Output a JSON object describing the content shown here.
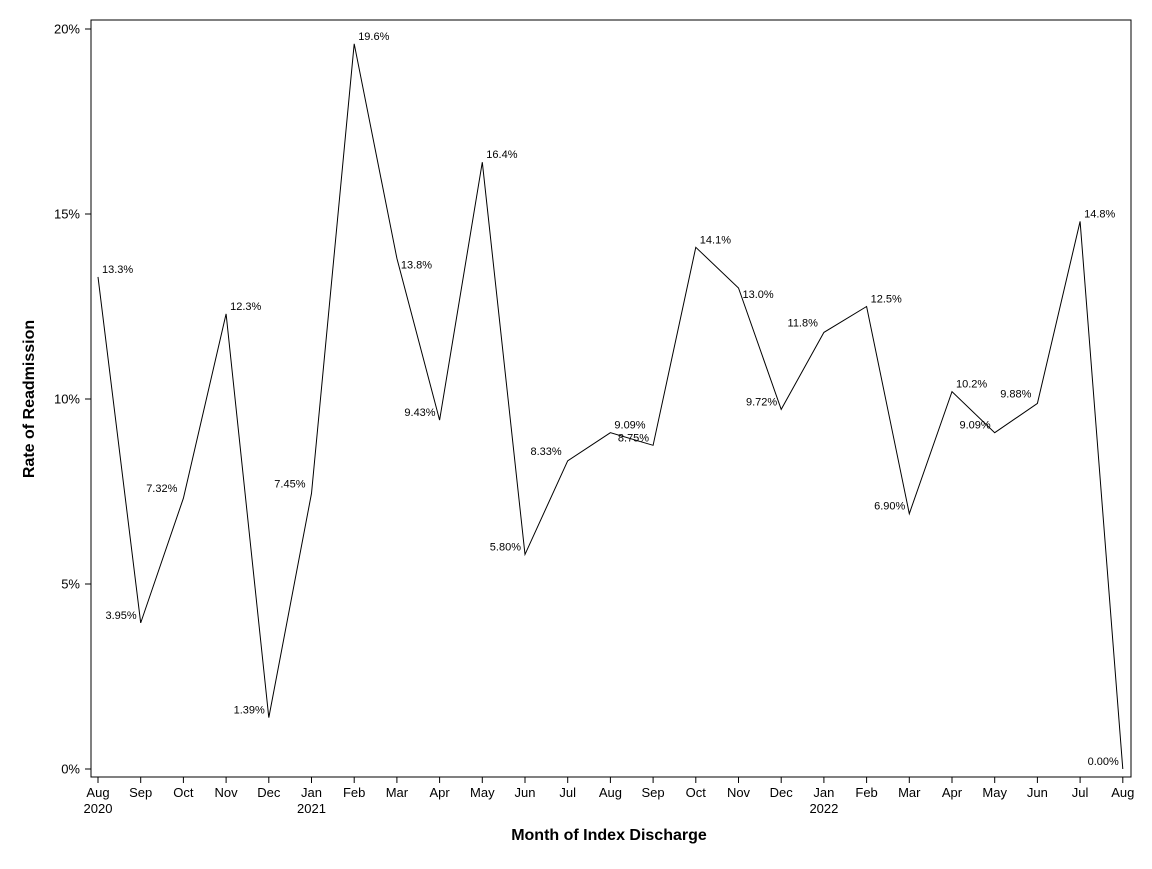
{
  "chart_data": {
    "type": "line",
    "title": "",
    "xlabel": "Month of Index Discharge",
    "ylabel": "Rate of Readmission",
    "ylim": [
      0,
      20
    ],
    "yticks": [
      "0%",
      "5%",
      "10%",
      "15%",
      "20%"
    ],
    "grid": false,
    "legend": "none",
    "line_color": "#000000",
    "categories": [
      {
        "month": "Aug",
        "year": "2020"
      },
      {
        "month": "Sep",
        "year": ""
      },
      {
        "month": "Oct",
        "year": ""
      },
      {
        "month": "Nov",
        "year": ""
      },
      {
        "month": "Dec",
        "year": ""
      },
      {
        "month": "Jan",
        "year": "2021"
      },
      {
        "month": "Feb",
        "year": ""
      },
      {
        "month": "Mar",
        "year": ""
      },
      {
        "month": "Apr",
        "year": ""
      },
      {
        "month": "May",
        "year": ""
      },
      {
        "month": "Jun",
        "year": ""
      },
      {
        "month": "Jul",
        "year": ""
      },
      {
        "month": "Aug",
        "year": ""
      },
      {
        "month": "Sep",
        "year": ""
      },
      {
        "month": "Oct",
        "year": ""
      },
      {
        "month": "Nov",
        "year": ""
      },
      {
        "month": "Dec",
        "year": ""
      },
      {
        "month": "Jan",
        "year": "2022"
      },
      {
        "month": "Feb",
        "year": ""
      },
      {
        "month": "Mar",
        "year": ""
      },
      {
        "month": "Apr",
        "year": ""
      },
      {
        "month": "May",
        "year": ""
      },
      {
        "month": "Jun",
        "year": ""
      },
      {
        "month": "Jul",
        "year": ""
      },
      {
        "month": "Aug",
        "year": ""
      }
    ],
    "values": [
      13.3,
      3.95,
      7.32,
      12.3,
      1.39,
      7.45,
      19.6,
      13.8,
      9.43,
      16.4,
      5.8,
      8.33,
      9.09,
      8.75,
      14.1,
      13.0,
      9.72,
      11.8,
      12.5,
      6.9,
      10.2,
      9.09,
      9.88,
      14.8,
      0.0
    ],
    "data_labels": [
      "13.3%",
      "3.95%",
      "7.32%",
      "12.3%",
      "1.39%",
      "7.45%",
      "19.6%",
      "13.8%",
      "9.43%",
      "16.4%",
      "5.80%",
      "8.33%",
      "9.09%",
      "8.75%",
      "14.1%",
      "13.0%",
      "9.72%",
      "11.8%",
      "12.5%",
      "6.90%",
      "10.2%",
      "9.09%",
      "9.88%",
      "14.8%",
      "0.00%"
    ]
  }
}
